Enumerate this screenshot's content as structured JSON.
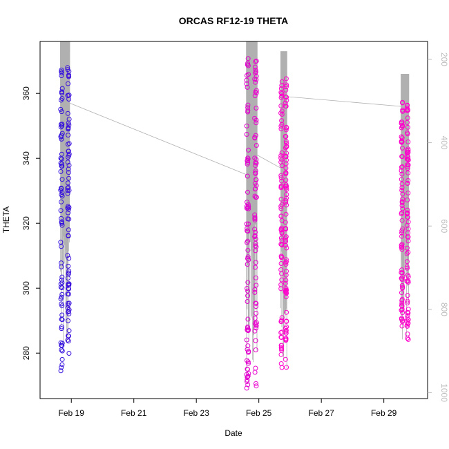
{
  "chart_data": {
    "type": "scatter",
    "title": "ORCAS RF12-19 THETA",
    "xlabel": "Date",
    "ylabel": "THETA",
    "x_ticks": [
      "Feb 19",
      "Feb 21",
      "Feb 23",
      "Feb 25",
      "Feb 27",
      "Feb 29"
    ],
    "y_ticks": [
      280,
      300,
      320,
      340,
      360
    ],
    "y_right_ticks": [
      200,
      400,
      600,
      800,
      1000
    ],
    "xlim_days": [
      18.0,
      30.4
    ],
    "ylim": [
      266,
      376
    ],
    "y_right_lim": [
      157,
      1014
    ],
    "colors": {
      "start": "#3311dd",
      "end": "#ff00cc",
      "track": "#b0b0b0"
    },
    "flights": [
      {
        "day_start": 18.65,
        "day_end": 18.95,
        "theta_min": 274,
        "theta_max": 369
      },
      {
        "day_start": 24.6,
        "day_end": 24.95,
        "theta_min": 269,
        "theta_max": 373
      },
      {
        "day_start": 25.7,
        "day_end": 25.9,
        "theta_min": 274,
        "theta_max": 365
      },
      {
        "day_start": 29.55,
        "day_end": 29.8,
        "theta_min": 284,
        "theta_max": 358
      }
    ],
    "transits": [
      {
        "day_start": 18.95,
        "theta_start": 357,
        "day_end": 24.6,
        "theta_end": 335
      },
      {
        "day_start": 24.95,
        "theta_start": 341,
        "day_end": 25.7,
        "theta_end": 337
      },
      {
        "day_start": 25.9,
        "theta_start": 359,
        "day_end": 29.55,
        "theta_end": 356
      }
    ]
  }
}
